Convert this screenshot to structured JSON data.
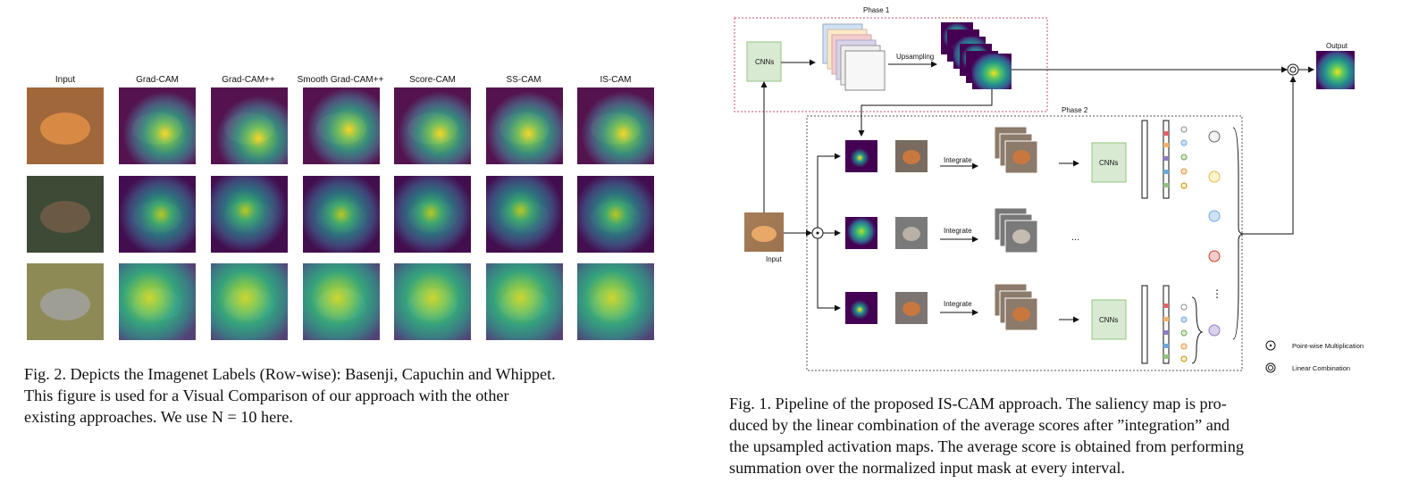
{
  "figure2": {
    "columns": [
      "Input",
      "Grad-CAM",
      "Grad-CAM++",
      "Smooth Grad-CAM++",
      "Score-CAM",
      "SS-CAM",
      "IS-CAM"
    ],
    "caption_lines": [
      "Fig. 2. Depicts the Imagenet Labels (Row-wise): Basenji, Capuchin and Whippet.",
      "This figure is used for a Visual Comparison of our approach with the other",
      "existing approaches. We use N = 10 here."
    ]
  },
  "figure1": {
    "phase1_label": "Phase 1",
    "phase2_label": "Phase 2",
    "cnns_label": "CNNs",
    "upsampling_label": "Upsampling",
    "output_label": "Output",
    "input_label": "Input",
    "integrate_label": "Integrate",
    "ellipsis_h": "...",
    "ellipsis_v": "⋮",
    "legend": {
      "pointwise": "Point-wise Multiplication",
      "linear": "Linear Combination"
    },
    "caption_lines": [
      "Fig. 1.  Pipeline of the proposed IS-CAM approach. The saliency map is pro-",
      "duced by the linear combination of the average scores after ”integration” and",
      "the upsampled activation maps. The average score is obtained from performing",
      "summation over the normalized input mask at every interval."
    ]
  }
}
